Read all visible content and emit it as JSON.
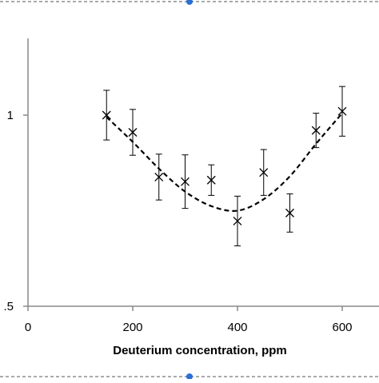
{
  "chart_data": {
    "type": "scatter",
    "title": "",
    "xlabel": "Deuterium concentration, ppm",
    "ylabel": "",
    "xlim": [
      0,
      650
    ],
    "ylim": [
      0.5,
      1.2
    ],
    "xticks": [
      0,
      200,
      400,
      600
    ],
    "xtick_labels": [
      "0",
      "200",
      "400",
      "600"
    ],
    "yticks": [
      1.0,
      0.5
    ],
    "ytick_labels": [
      "1",
      ".5"
    ],
    "grid": false,
    "legend": "none",
    "series": [
      {
        "marker": "x",
        "color": "#000000",
        "x": [
          150,
          200,
          250,
          300,
          350,
          450,
          500,
          550,
          600
        ],
        "y": [
          1.0,
          0.955,
          0.838,
          0.826,
          0.83,
          0.85,
          0.744,
          0.96,
          1.01
        ],
        "yerr": [
          0.065,
          0.06,
          0.06,
          0.07,
          0.04,
          0.06,
          0.05,
          0.045,
          0.065
        ]
      },
      {
        "marker": "x",
        "color": "#000000",
        "x": [
          400
        ],
        "y": [
          0.723
        ],
        "yerr": [
          0.065
        ]
      }
    ],
    "fit_curve": {
      "style": "dashed",
      "x": [
        150,
        200,
        250,
        300,
        350,
        400,
        450,
        500,
        550,
        600
      ],
      "y": [
        0.995,
        0.93,
        0.86,
        0.8,
        0.762,
        0.75,
        0.78,
        0.84,
        0.925,
        1.005
      ]
    }
  },
  "colors": {
    "axis": "#888888",
    "ink": "#000000",
    "frame_border": "#777777",
    "handle": "#2a6fd6"
  }
}
